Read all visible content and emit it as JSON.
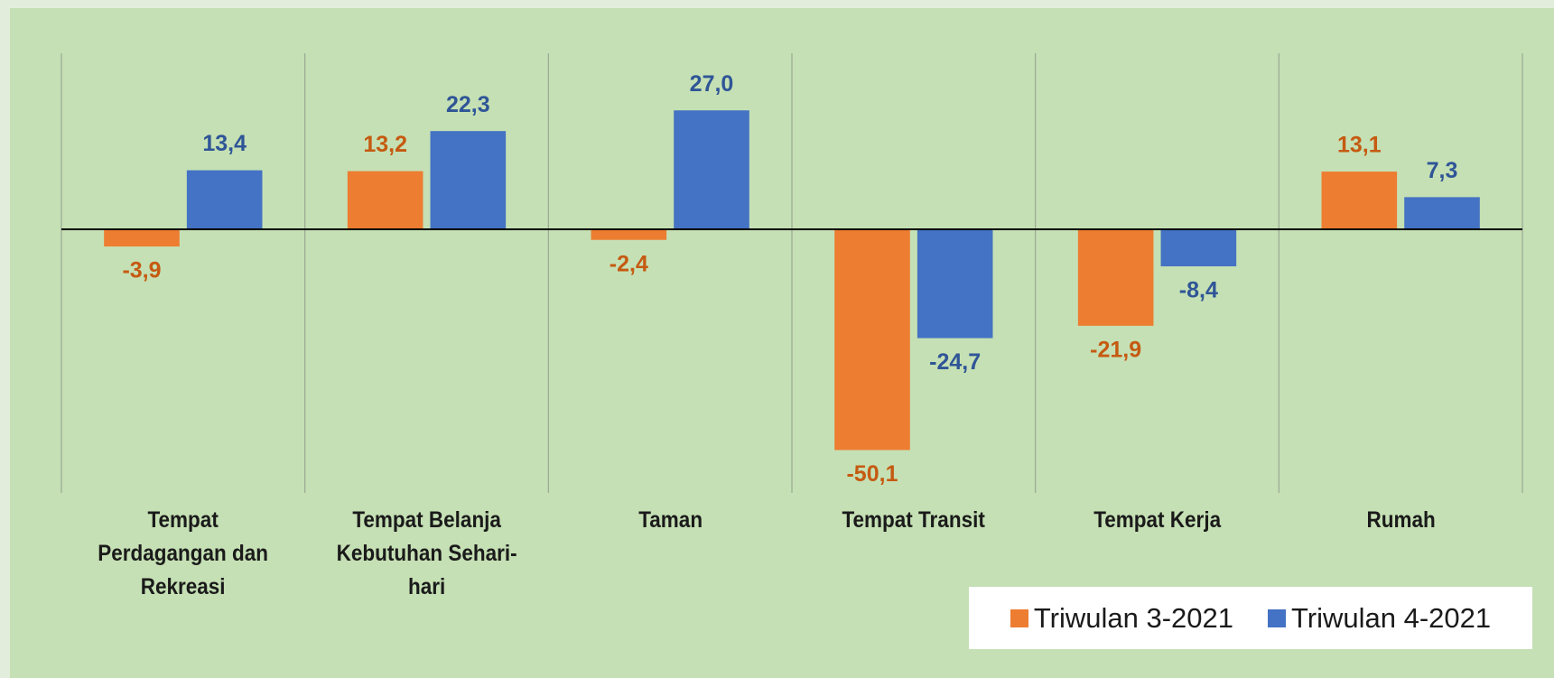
{
  "chart_data": {
    "type": "bar",
    "categories": [
      "Tempat Perdagangan dan Rekreasi",
      "Tempat Belanja Kebutuhan Sehari-hari",
      "Taman",
      "Tempat Transit",
      "Tempat Kerja",
      "Rumah"
    ],
    "series": [
      {
        "name": "Triwulan 3-2021",
        "color": "#ed7d31",
        "values": [
          -3.9,
          13.2,
          -2.4,
          -50.1,
          -21.9,
          13.1
        ],
        "value_labels": [
          "-3,9",
          "13,2",
          "-2,4",
          "-50,1",
          "-21,9",
          "13,1"
        ]
      },
      {
        "name": "Triwulan 4-2021",
        "color": "#4472c4",
        "values": [
          13.4,
          22.3,
          27.0,
          -24.7,
          -8.4,
          7.3
        ],
        "value_labels": [
          "13,4",
          "22,3",
          "27,0",
          "-24,7",
          "-8,4",
          "7,3"
        ]
      }
    ],
    "legend": "bottom-right"
  }
}
